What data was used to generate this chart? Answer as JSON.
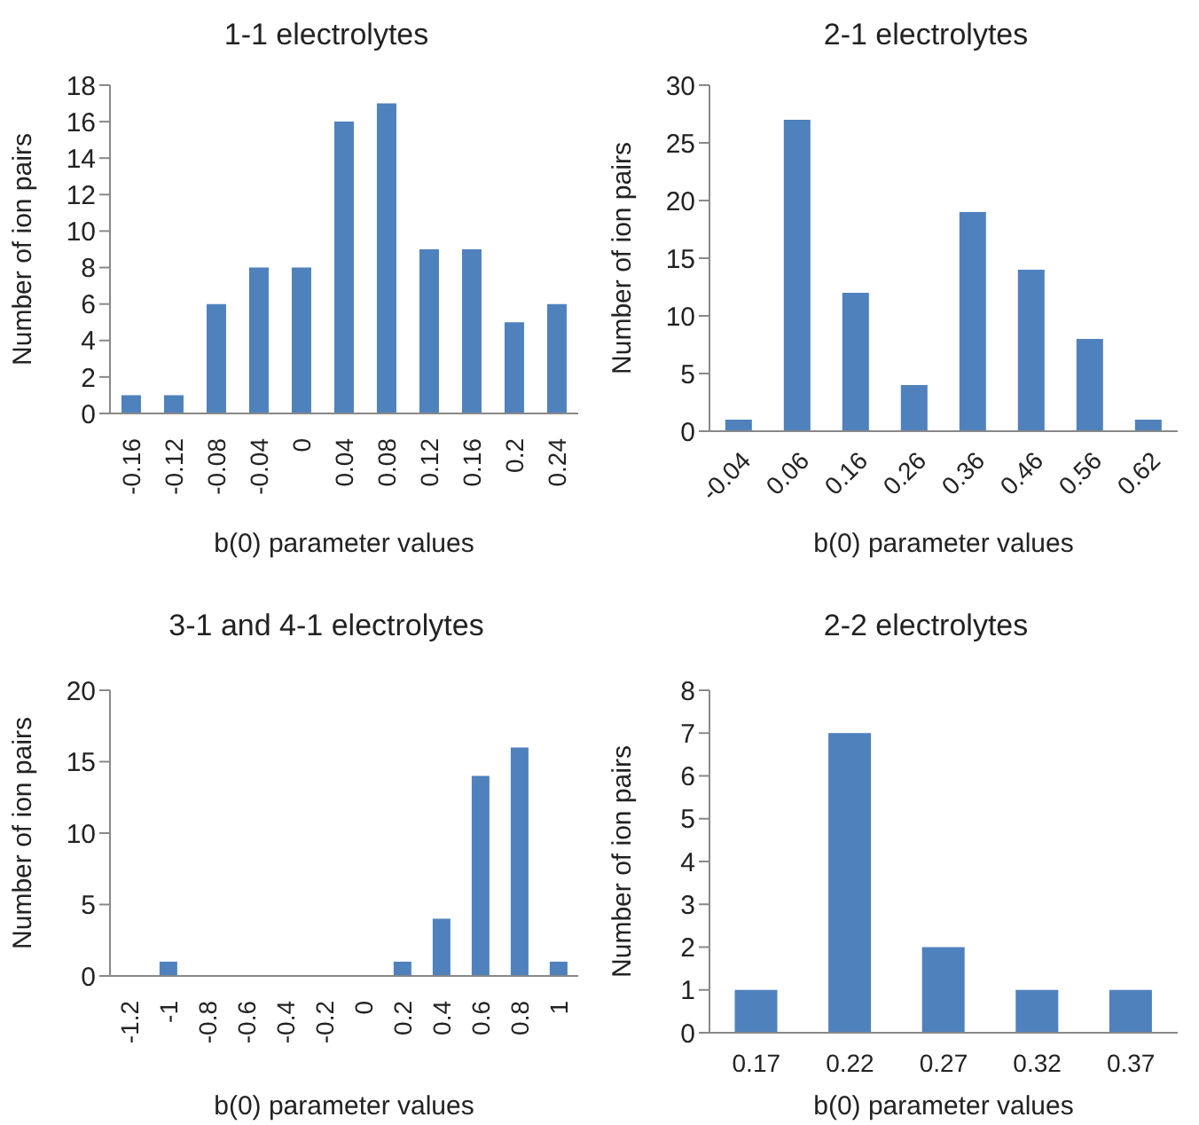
{
  "chart_data": [
    {
      "type": "bar",
      "title": "1-1 electrolytes",
      "xlabel": "b(0) parameter values",
      "ylabel": "Number of ion pairs",
      "categories": [
        "-0.16",
        "-0.12",
        "-0.08",
        "-0.04",
        "0",
        "0.04",
        "0.08",
        "0.12",
        "0.16",
        "0.2",
        "0.24"
      ],
      "values": [
        1,
        1,
        6,
        8,
        8,
        16,
        17,
        9,
        9,
        5,
        6
      ],
      "color": "#4f81bd",
      "ylim": [
        0,
        18
      ],
      "yticks": [
        0,
        2,
        4,
        6,
        8,
        10,
        12,
        14,
        16,
        18
      ]
    },
    {
      "type": "bar",
      "title": "2-1 electrolytes",
      "xlabel": "b(0) parameter values",
      "ylabel": "Number of ion pairs",
      "categories": [
        "-0.04",
        "0.06",
        "0.16",
        "0.26",
        "0.36",
        "0.46",
        "0.56",
        "0.62"
      ],
      "values": [
        1,
        27,
        12,
        4,
        19,
        14,
        8,
        1
      ],
      "color": "#4f81bd",
      "ylim": [
        0,
        30
      ],
      "yticks": [
        0,
        5,
        10,
        15,
        20,
        25,
        30
      ]
    },
    {
      "type": "bar",
      "title": "3-1 and 4-1 electrolytes",
      "xlabel": "b(0) parameter values",
      "ylabel": "Number of ion pairs",
      "categories": [
        "-1.2",
        "-1",
        "-0.8",
        "-0.6",
        "-0.4",
        "-0.2",
        "0",
        "0.2",
        "0.4",
        "0.6",
        "0.8",
        "1"
      ],
      "values": [
        0,
        1,
        0,
        0,
        0,
        0,
        0,
        1,
        4,
        14,
        16,
        1
      ],
      "color": "#4f81bd",
      "ylim": [
        0,
        20
      ],
      "yticks": [
        0,
        5,
        10,
        15,
        20
      ]
    },
    {
      "type": "bar",
      "title": "2-2 electrolytes",
      "xlabel": "b(0) parameter values",
      "ylabel": "Number of ion pairs",
      "categories": [
        "0.17",
        "0.22",
        "0.27",
        "0.32",
        "0.37"
      ],
      "values": [
        1,
        7,
        2,
        1,
        1
      ],
      "color": "#4f81bd",
      "ylim": [
        0,
        8
      ],
      "yticks": [
        0,
        1,
        2,
        3,
        4,
        5,
        6,
        7,
        8
      ]
    }
  ]
}
